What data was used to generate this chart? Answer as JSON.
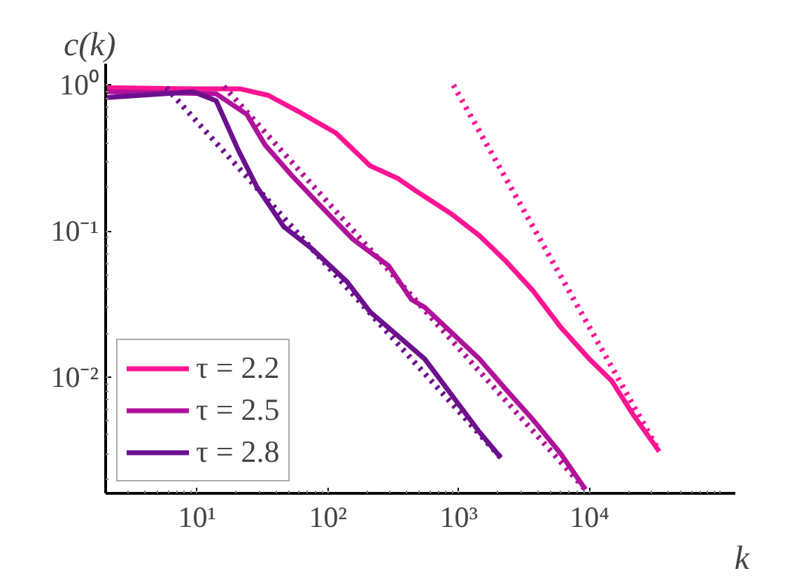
{
  "chart_data": {
    "type": "line",
    "xlabel": "k",
    "ylabel": "c(k)",
    "log": "xy",
    "grid": false,
    "legend": "bottom left",
    "marker": "none",
    "xlim": [
      2,
      130000
    ],
    "ylim": [
      0.0016,
      1.4
    ],
    "xticks": [
      {
        "value": 10,
        "label": "10¹"
      },
      {
        "value": 100,
        "label": "10²"
      },
      {
        "value": 1000,
        "label": "10³"
      },
      {
        "value": 10000,
        "label": "10⁴"
      }
    ],
    "yticks": [
      {
        "value": 1,
        "label": "10⁰"
      },
      {
        "value": 0.1,
        "label": "10⁻¹"
      },
      {
        "value": 0.01,
        "label": "10⁻²"
      }
    ],
    "series": [
      {
        "name": "τ = 2.2",
        "color": "#ff1493",
        "line_style": "solid",
        "x": [
          2,
          10,
          21.5,
          35,
          63,
          115,
          210,
          340,
          465,
          890,
          1440,
          2300,
          3700,
          6000,
          9800,
          14800,
          21600,
          34000
        ],
        "values": [
          0.96,
          0.94,
          0.94,
          0.85,
          0.64,
          0.47,
          0.28,
          0.23,
          0.19,
          0.13,
          0.093,
          0.062,
          0.039,
          0.022,
          0.0135,
          0.0094,
          0.0055,
          0.0031
        ]
      },
      {
        "name": "τ = 2.5",
        "color": "#b0129a",
        "line_style": "solid",
        "x": [
          2,
          14,
          24,
          33,
          53,
          87,
          155,
          290,
          435,
          550,
          890,
          1440,
          2300,
          3700,
          6000,
          9300
        ],
        "values": [
          0.9,
          0.87,
          0.63,
          0.39,
          0.24,
          0.15,
          0.088,
          0.058,
          0.034,
          0.03,
          0.02,
          0.0133,
          0.0082,
          0.0051,
          0.003,
          0.0017
        ]
      },
      {
        "name": "τ = 2.8",
        "color": "#6c108e",
        "line_style": "solid",
        "x": [
          2,
          9.3,
          14,
          20.6,
          28.7,
          46,
          75,
          140,
          210,
          550,
          1440,
          2100
        ],
        "values": [
          0.82,
          0.9,
          0.78,
          0.36,
          0.2,
          0.107,
          0.076,
          0.045,
          0.028,
          0.0133,
          0.0042,
          0.0028
        ]
      },
      {
        "color": "#ff1493",
        "line_style": "dotted",
        "x": [
          910,
          34000
        ],
        "values": [
          1.0,
          0.0031
        ]
      },
      {
        "color": "#b0129a",
        "line_style": "dotted",
        "x": [
          16,
          9300
        ],
        "values": [
          0.98,
          0.0017
        ]
      },
      {
        "color": "#6c108e",
        "line_style": "dotted",
        "x": [
          5.8,
          2100
        ],
        "values": [
          0.96,
          0.0028
        ]
      }
    ]
  }
}
